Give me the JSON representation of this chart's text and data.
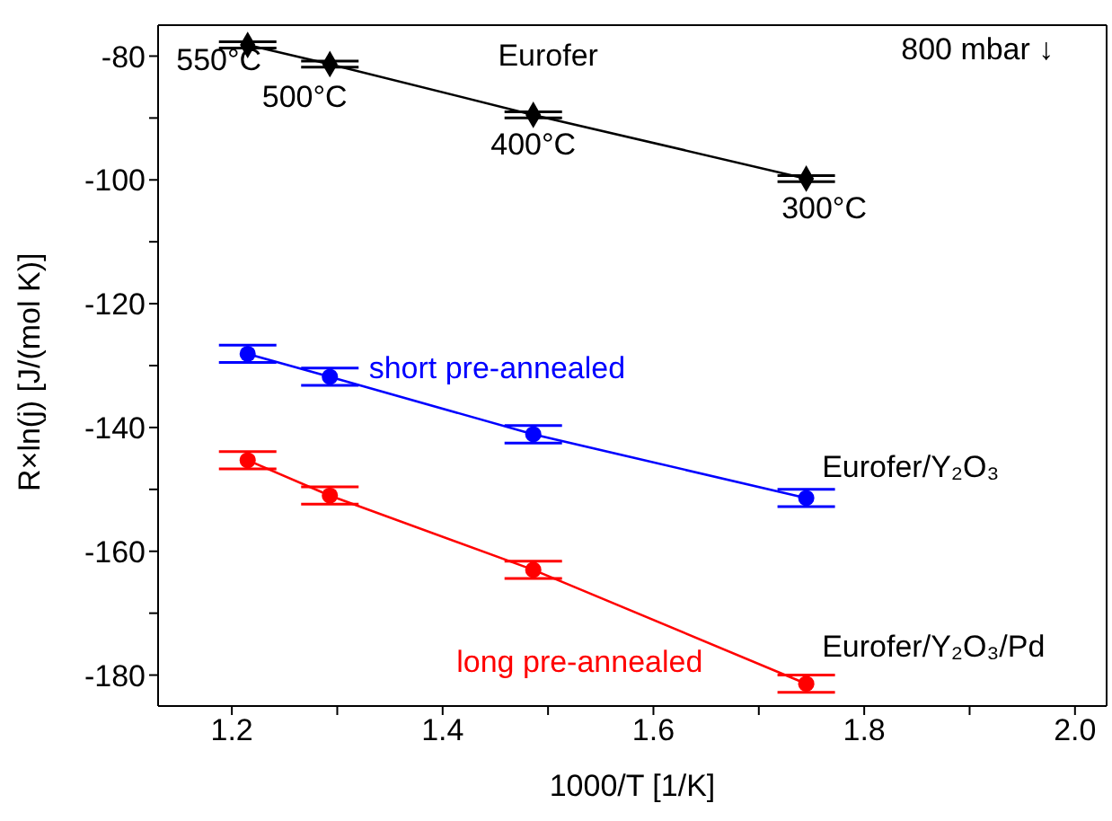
{
  "chart_data": {
    "type": "line",
    "xlabel": "1000/T [1/K]",
    "ylabel": "R×ln(j) [J/(mol K)]",
    "x": [
      1.215,
      1.293,
      1.486,
      1.745
    ],
    "series": [
      {
        "name": "Eurofer",
        "color": "#000000",
        "values": [
          -78.2,
          -81.3,
          -89.5,
          -99.8
        ],
        "errors": [
          0.5,
          0.5,
          0.5,
          0.5
        ],
        "marker": "diamond"
      },
      {
        "name": "Eurofer/Y₂O₃",
        "color": "#0000ff",
        "values": [
          -128.1,
          -131.8,
          -141.1,
          -151.4
        ],
        "errors": [
          1.4,
          1.4,
          1.4,
          1.4
        ],
        "marker": "circle"
      },
      {
        "name": "Eurofer/Y₂O₃/Pd",
        "color": "#ff0000",
        "values": [
          -145.3,
          -151.0,
          -163.0,
          -181.4
        ],
        "errors": [
          1.4,
          1.4,
          1.4,
          1.4
        ],
        "marker": "circle"
      }
    ],
    "xlim": [
      1.13,
      2.03
    ],
    "ylim": [
      -185,
      -75
    ],
    "xticks": [
      1.2,
      {
        "value": 1.3,
        "label": null
      },
      1.4,
      {
        "value": 1.5,
        "label": null
      },
      1.6,
      {
        "value": 1.7,
        "label": null
      },
      1.8,
      {
        "value": 1.9,
        "label": null
      },
      {
        "value": 2.0,
        "label": "2.0"
      }
    ],
    "yticks": [
      -80,
      {
        "value": -90,
        "label": null
      },
      -100,
      {
        "value": -110,
        "label": null
      },
      -120,
      {
        "value": -130,
        "label": null
      },
      -140,
      {
        "value": -150,
        "label": null
      },
      -160,
      {
        "value": -170,
        "label": null
      },
      -180
    ],
    "annotations": [
      {
        "text": "550°C",
        "x": 1.215,
        "y": -78.2
      },
      {
        "text": "500°C",
        "x": 1.293,
        "y": -81.3
      },
      {
        "text": "400°C",
        "x": 1.486,
        "y": -89.5
      },
      {
        "text": "300°C",
        "x": 1.745,
        "y": -99.8
      },
      "800 mbar ↓",
      "short pre-annealed",
      "long pre-annealed"
    ],
    "line_style": "solid"
  }
}
